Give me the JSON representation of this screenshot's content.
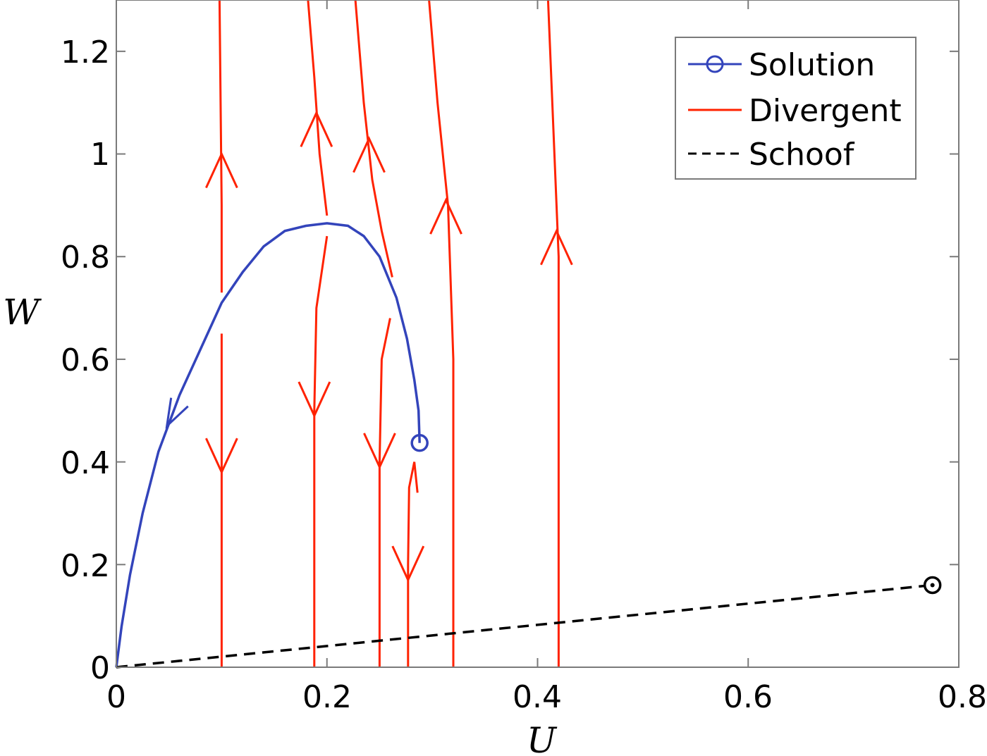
{
  "chart_data": {
    "type": "line",
    "title": "",
    "xlabel": "U",
    "ylabel": "W",
    "xlim": [
      0,
      0.8
    ],
    "ylim": [
      0,
      1.3
    ],
    "x_ticks": [
      "0",
      "0.2",
      "0.4",
      "0.6",
      "0.8"
    ],
    "y_ticks": [
      "0",
      "0.2",
      "0.4",
      "0.6",
      "0.8",
      "1",
      "1.2"
    ],
    "grid": false,
    "legend_position": "top-right",
    "colors": {
      "solution": "#3344bb",
      "divergent": "#ff2200",
      "schoof": "#000000"
    },
    "legend": [
      {
        "label": "Solution",
        "style": "line-circle",
        "color": "#3344bb"
      },
      {
        "label": "Divergent",
        "style": "line",
        "color": "#ff2200"
      },
      {
        "label": "Schoof",
        "style": "dashed",
        "color": "#000000"
      }
    ],
    "series": [
      {
        "name": "Solution",
        "color": "#3344bb",
        "style": "solid",
        "end_marker": "circle",
        "points": [
          [
            0.288,
            0.437
          ],
          [
            0.287,
            0.5
          ],
          [
            0.283,
            0.56
          ],
          [
            0.276,
            0.64
          ],
          [
            0.266,
            0.72
          ],
          [
            0.25,
            0.8
          ],
          [
            0.235,
            0.84
          ],
          [
            0.22,
            0.86
          ],
          [
            0.2,
            0.865
          ],
          [
            0.18,
            0.86
          ],
          [
            0.16,
            0.85
          ],
          [
            0.14,
            0.82
          ],
          [
            0.12,
            0.77
          ],
          [
            0.1,
            0.71
          ],
          [
            0.08,
            0.62
          ],
          [
            0.06,
            0.53
          ],
          [
            0.04,
            0.42
          ],
          [
            0.025,
            0.3
          ],
          [
            0.013,
            0.18
          ],
          [
            0.005,
            0.08
          ],
          [
            0.0,
            0.0
          ]
        ],
        "arrows": [
          {
            "at": [
              0.048,
              0.47
            ],
            "direction": "down-left"
          }
        ]
      },
      {
        "name": "Divergent",
        "color": "#ff2200",
        "style": "solid",
        "segments": [
          {
            "points": [
              [
                0.1,
                0.73
              ],
              [
                0.1,
                0.9
              ],
              [
                0.099,
                1.1
              ],
              [
                0.098,
                1.3
              ]
            ],
            "arrow": {
              "at": [
                0.1,
                1.0
              ],
              "direction": "up"
            }
          },
          {
            "points": [
              [
                0.1,
                0.0
              ],
              [
                0.1,
                0.2
              ],
              [
                0.1,
                0.4
              ],
              [
                0.1,
                0.65
              ]
            ],
            "arrow": {
              "at": [
                0.1,
                0.38
              ],
              "direction": "down"
            }
          },
          {
            "points": [
              [
                0.2,
                0.88
              ],
              [
                0.193,
                1.0
              ],
              [
                0.188,
                1.15
              ],
              [
                0.182,
                1.3
              ]
            ],
            "arrow": {
              "at": [
                0.19,
                1.08
              ],
              "direction": "up"
            }
          },
          {
            "points": [
              [
                0.2,
                0.84
              ],
              [
                0.19,
                0.7
              ],
              [
                0.188,
                0.5
              ],
              [
                0.188,
                0.2
              ],
              [
                0.188,
                0.0
              ]
            ],
            "arrow": {
              "at": [
                0.188,
                0.49
              ],
              "direction": "down"
            }
          },
          {
            "points": [
              [
                0.262,
                0.76
              ],
              [
                0.252,
                0.85
              ],
              [
                0.243,
                0.95
              ],
              [
                0.235,
                1.1
              ],
              [
                0.227,
                1.3
              ]
            ],
            "arrow": {
              "at": [
                0.24,
                1.03
              ],
              "direction": "up"
            }
          },
          {
            "points": [
              [
                0.26,
                0.68
              ],
              [
                0.252,
                0.6
              ],
              [
                0.25,
                0.4
              ],
              [
                0.25,
                0.2
              ],
              [
                0.25,
                0.0
              ]
            ],
            "arrow": {
              "at": [
                0.25,
                0.39
              ],
              "direction": "down"
            }
          },
          {
            "points": [
              [
                0.286,
                0.34
              ],
              [
                0.283,
                0.4
              ],
              [
                0.278,
                0.35
              ],
              [
                0.277,
                0.2
              ],
              [
                0.277,
                0.0
              ]
            ],
            "arrow": {
              "at": [
                0.277,
                0.17
              ],
              "direction": "down"
            }
          },
          {
            "points": [
              [
                0.32,
                0.0
              ],
              [
                0.32,
                0.3
              ],
              [
                0.32,
                0.6
              ],
              [
                0.315,
                0.9
              ],
              [
                0.305,
                1.1
              ],
              [
                0.297,
                1.3
              ]
            ],
            "arrow": {
              "at": [
                0.313,
                0.91
              ],
              "direction": "up"
            }
          },
          {
            "points": [
              [
                0.42,
                0.0
              ],
              [
                0.42,
                0.4
              ],
              [
                0.42,
                0.8
              ],
              [
                0.416,
                1.0
              ],
              [
                0.41,
                1.3
              ]
            ],
            "arrow": {
              "at": [
                0.418,
                0.85
              ],
              "direction": "up"
            }
          }
        ]
      },
      {
        "name": "Schoof",
        "color": "#000000",
        "style": "dashed",
        "end_marker": "circle-dot",
        "points": [
          [
            0.0,
            0.0
          ],
          [
            0.775,
            0.16
          ]
        ]
      }
    ]
  }
}
